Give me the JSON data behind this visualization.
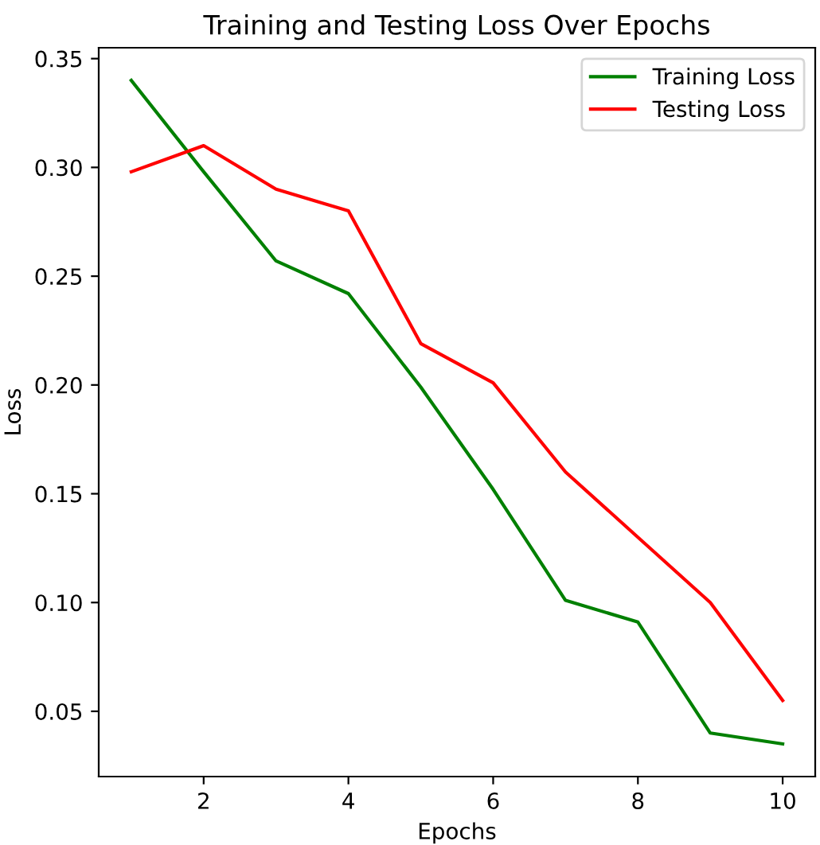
{
  "chart_data": {
    "type": "line",
    "title": "Training and Testing Loss Over Epochs",
    "xlabel": "Epochs",
    "ylabel": "Loss",
    "x": [
      1,
      2,
      3,
      4,
      5,
      6,
      7,
      8,
      9,
      10
    ],
    "series": [
      {
        "name": "Training Loss",
        "color": "#008000",
        "values": [
          0.34,
          0.298,
          0.257,
          0.242,
          0.199,
          0.152,
          0.101,
          0.091,
          0.04,
          0.035
        ]
      },
      {
        "name": "Testing Loss",
        "color": "#ff0000",
        "values": [
          0.298,
          0.31,
          0.29,
          0.28,
          0.219,
          0.201,
          0.16,
          0.13,
          0.1,
          0.055
        ]
      }
    ],
    "xlim": [
      0.55,
      10.45
    ],
    "ylim": [
      0.02,
      0.355
    ],
    "xticks": [
      2,
      4,
      6,
      8,
      10
    ],
    "yticks": [
      {
        "value": 0.05,
        "label": "0.05"
      },
      {
        "value": 0.1,
        "label": "0.10"
      },
      {
        "value": 0.15,
        "label": "0.15"
      },
      {
        "value": 0.2,
        "label": "0.20"
      },
      {
        "value": 0.25,
        "label": "0.25"
      },
      {
        "value": 0.3,
        "label": "0.30"
      },
      {
        "value": 0.35,
        "label": "0.35"
      }
    ],
    "legend": "top right",
    "grid": false,
    "marker": "none",
    "line_style": "solid"
  }
}
